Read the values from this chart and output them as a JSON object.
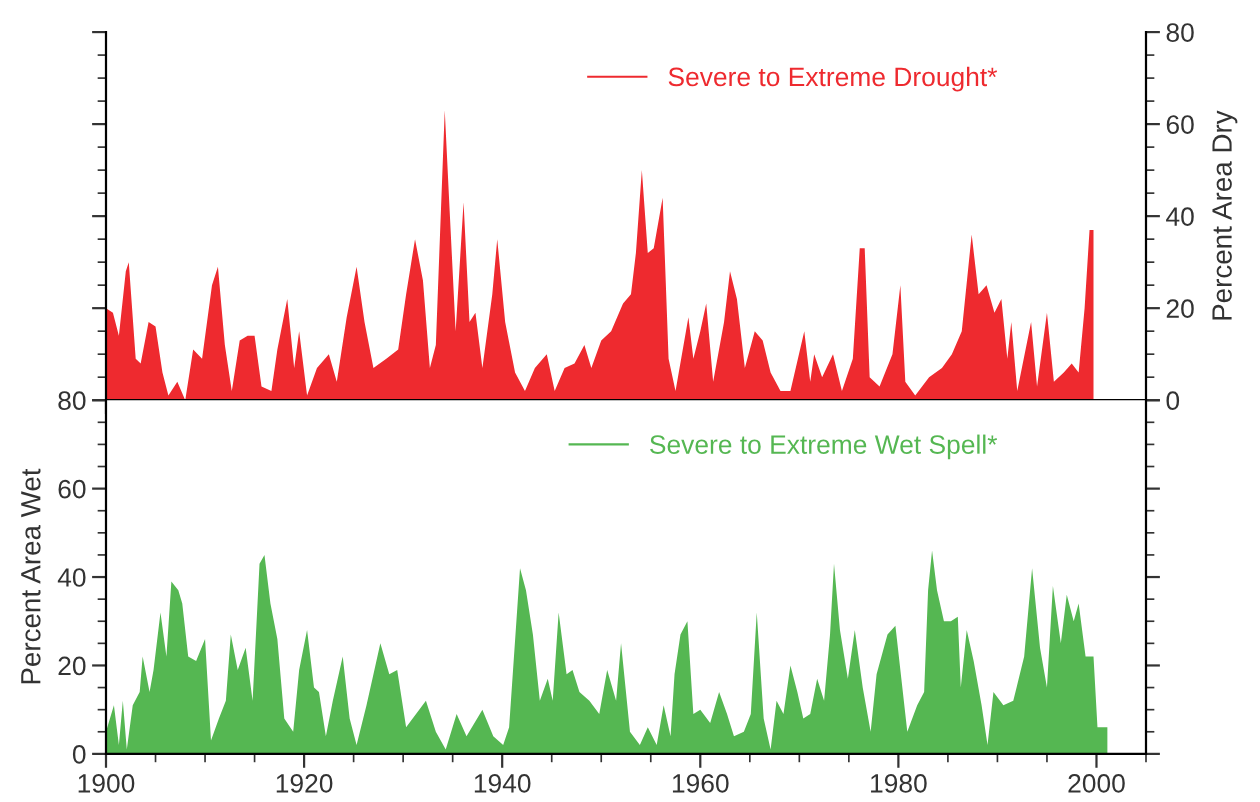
{
  "chart_data": [
    {
      "type": "area",
      "xlim": [
        1900,
        2005
      ],
      "xticks": [
        1900,
        1920,
        1940,
        1960,
        1980,
        2000
      ],
      "y2lim": [
        0,
        80
      ],
      "y2ticks": [
        0,
        20,
        40,
        60,
        80
      ],
      "y2label": "Percent Area Dry",
      "legend": "top right",
      "tick_labels": "y",
      "series": [
        {
          "name": "Severe to Extreme Drought*",
          "color": "#ee2a2f",
          "axis": "y2",
          "x": [
            1900.0,
            1900.7,
            1901.3,
            1902.0,
            1902.3,
            1903.0,
            1903.5,
            1904.3,
            1905.0,
            1905.7,
            1906.3,
            1907.2,
            1908.0,
            1908.8,
            1909.7,
            1910.7,
            1911.3,
            1912.0,
            1912.7,
            1913.5,
            1914.3,
            1915.0,
            1915.7,
            1916.7,
            1917.3,
            1918.3,
            1919.0,
            1919.5,
            1920.3,
            1921.3,
            1922.5,
            1923.3,
            1924.3,
            1925.3,
            1926.1,
            1927.0,
            1928.3,
            1929.5,
            1930.3,
            1931.2,
            1932.0,
            1932.7,
            1933.3,
            1934.2,
            1934.7,
            1935.3,
            1936.1,
            1936.7,
            1937.3,
            1938.0,
            1939.0,
            1939.5,
            1940.3,
            1941.3,
            1942.3,
            1943.3,
            1944.5,
            1945.3,
            1946.3,
            1947.3,
            1948.3,
            1949.0,
            1950.0,
            1951.0,
            1952.2,
            1953.0,
            1953.5,
            1954.1,
            1954.7,
            1955.3,
            1956.2,
            1956.8,
            1957.5,
            1958.8,
            1959.3,
            1960.0,
            1960.6,
            1961.3,
            1962.4,
            1963.0,
            1963.7,
            1964.5,
            1965.5,
            1966.3,
            1967.1,
            1968.1,
            1969.1,
            1970.5,
            1971.1,
            1971.5,
            1972.3,
            1973.4,
            1974.3,
            1975.4,
            1976.1,
            1976.6,
            1977.1,
            1978.1,
            1979.4,
            1980.2,
            1980.7,
            1981.7,
            1983.1,
            1984.4,
            1985.4,
            1986.4,
            1987.4,
            1988.1,
            1988.9,
            1989.7,
            1990.4,
            1991.0,
            1991.4,
            1992.0,
            1993.4,
            1994.0,
            1995.0,
            1995.7,
            1996.7,
            1997.5,
            1998.2,
            1998.8,
            1999.3,
            1999.7
          ],
          "values": [
            20,
            19,
            14,
            28,
            30,
            9,
            8,
            17,
            16,
            6,
            1,
            4,
            0,
            11,
            9,
            25,
            29,
            12,
            2,
            13,
            14,
            14,
            3,
            2,
            11,
            22,
            7,
            15,
            1,
            7,
            10,
            4,
            18,
            29,
            17,
            7,
            9,
            11,
            23,
            35,
            26,
            7,
            12,
            63,
            41,
            15,
            43,
            17,
            19,
            7,
            23,
            35,
            17,
            6,
            2,
            7,
            10,
            2,
            7,
            8,
            12,
            7,
            13,
            15,
            21,
            23,
            32,
            50,
            32,
            33,
            44,
            9,
            2,
            18,
            9,
            15,
            21,
            4,
            17,
            28,
            22,
            7,
            15,
            13,
            6,
            2,
            2,
            15,
            4,
            10,
            5,
            10,
            2,
            9,
            33,
            33,
            5,
            3,
            10,
            25,
            4,
            1,
            5,
            7,
            10,
            15,
            36,
            23,
            25,
            19,
            22,
            9,
            17,
            2,
            17,
            3,
            19,
            4,
            6,
            8,
            6,
            20,
            37,
            37
          ]
        }
      ]
    },
    {
      "type": "area",
      "xlim": [
        1900,
        2005
      ],
      "xticks": [
        1900,
        1920,
        1940,
        1960,
        1980,
        2000
      ],
      "ylim": [
        0,
        80
      ],
      "yticks": [
        0,
        20,
        40,
        60,
        80
      ],
      "ylabel": "Percent Area Wet",
      "legend": "top right",
      "series": [
        {
          "name": "Severe to Extreme Wet Spell*",
          "color": "#55b752",
          "x": [
            1900.0,
            1900.8,
            1901.3,
            1901.7,
            1902.1,
            1902.7,
            1903.4,
            1903.7,
            1904.4,
            1904.8,
            1905.5,
            1906.1,
            1906.6,
            1907.3,
            1907.7,
            1908.3,
            1909.1,
            1910.0,
            1910.6,
            1911.4,
            1912.1,
            1912.6,
            1913.3,
            1914.1,
            1914.8,
            1915.5,
            1916.0,
            1916.6,
            1917.3,
            1918.0,
            1918.9,
            1919.5,
            1920.3,
            1921.0,
            1921.5,
            1922.2,
            1922.9,
            1923.9,
            1924.6,
            1925.3,
            1926.3,
            1926.9,
            1927.7,
            1928.6,
            1929.4,
            1930.3,
            1931.3,
            1932.3,
            1933.3,
            1934.3,
            1935.4,
            1936.4,
            1937.2,
            1938.0,
            1939.1,
            1940.1,
            1940.7,
            1941.8,
            1942.4,
            1943.1,
            1943.8,
            1944.6,
            1945.1,
            1945.7,
            1946.5,
            1947.1,
            1947.8,
            1948.8,
            1949.8,
            1950.6,
            1951.5,
            1952.0,
            1952.9,
            1953.9,
            1954.7,
            1955.6,
            1956.3,
            1957.0,
            1957.4,
            1958.0,
            1958.7,
            1959.3,
            1960.0,
            1961.0,
            1961.9,
            1962.7,
            1963.4,
            1964.4,
            1965.1,
            1965.7,
            1966.4,
            1967.1,
            1967.7,
            1968.4,
            1969.1,
            1969.8,
            1970.4,
            1971.1,
            1971.8,
            1972.5,
            1973.1,
            1973.5,
            1974.1,
            1974.9,
            1975.6,
            1976.4,
            1977.2,
            1977.8,
            1978.9,
            1979.7,
            1980.3,
            1980.9,
            1981.9,
            1982.6,
            1983.0,
            1983.4,
            1983.9,
            1984.6,
            1985.3,
            1986.0,
            1986.3,
            1986.9,
            1987.6,
            1988.4,
            1989.0,
            1989.6,
            1990.6,
            1991.6,
            1992.7,
            1993.5,
            1994.3,
            1995.0,
            1995.6,
            1996.4,
            1997.0,
            1997.7,
            1998.2,
            1998.9,
            1999.7,
            2000.1,
            2001.1
          ],
          "values": [
            5,
            11,
            2,
            12,
            1,
            11,
            14,
            22,
            14,
            19,
            32,
            22,
            39,
            37,
            34,
            22,
            21,
            26,
            3,
            8,
            12,
            27,
            19,
            24,
            12,
            43,
            45,
            34,
            26,
            8,
            5,
            19,
            28,
            15,
            14,
            4,
            12,
            22,
            8,
            2,
            11,
            17,
            25,
            18,
            19,
            6,
            9,
            12,
            5,
            1,
            9,
            4,
            7,
            10,
            4,
            2,
            6,
            42,
            37,
            27,
            12,
            17,
            12,
            32,
            18,
            19,
            14,
            12,
            9,
            19,
            12,
            25,
            5,
            2,
            6,
            2,
            11,
            4,
            18,
            27,
            30,
            9,
            10,
            7,
            14,
            9,
            4,
            5,
            9,
            32,
            8,
            1,
            12,
            9,
            20,
            14,
            8,
            9,
            17,
            12,
            27,
            43,
            28,
            17,
            28,
            15,
            5,
            18,
            27,
            29,
            17,
            5,
            11,
            14,
            37,
            46,
            37,
            30,
            30,
            31,
            15,
            28,
            21,
            11,
            2,
            14,
            11,
            12,
            22,
            42,
            24,
            15,
            38,
            25,
            36,
            30,
            34,
            22,
            22,
            6,
            6
          ]
        }
      ]
    }
  ]
}
